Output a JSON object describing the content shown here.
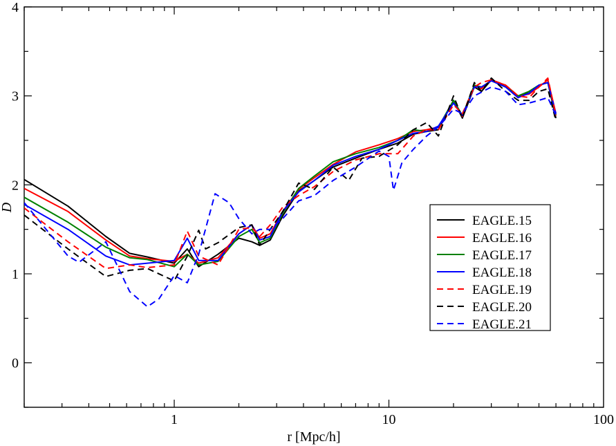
{
  "chart_data": {
    "type": "line",
    "title": "",
    "xlabel": "r [Mpc/h]",
    "ylabel": "D",
    "xscale": "log",
    "xlim": [
      0.2,
      100
    ],
    "ylim": [
      -0.5,
      4
    ],
    "x_ticks": [
      1,
      10,
      100
    ],
    "x_tick_labels": [
      "1",
      "10",
      "100"
    ],
    "y_ticks": [
      0,
      1,
      2,
      3,
      4
    ],
    "y_tick_labels": [
      "0",
      "1",
      "2",
      "3",
      "4"
    ],
    "legend_position": "right",
    "series": [
      {
        "name": "EAGLE.15",
        "color": "#000000",
        "dashed": false,
        "x": [
          0.2,
          0.32,
          0.48,
          0.62,
          0.75,
          1.0,
          1.15,
          1.3,
          1.6,
          2.0,
          2.3,
          2.5,
          2.8,
          3.2,
          3.8,
          4.5,
          5.5,
          7.0,
          9.0,
          11.0,
          13.0,
          15.0,
          17.0,
          20.0,
          22.0,
          25.0,
          27.0,
          30.0,
          35.0,
          40.0,
          45.0,
          50.0,
          55.0,
          60.0
        ],
        "y": [
          2.06,
          1.76,
          1.42,
          1.23,
          1.19,
          1.12,
          1.28,
          1.08,
          1.22,
          1.4,
          1.36,
          1.32,
          1.38,
          1.65,
          1.93,
          2.05,
          2.2,
          2.3,
          2.4,
          2.47,
          2.57,
          2.6,
          2.62,
          2.95,
          2.75,
          3.1,
          3.05,
          3.18,
          3.1,
          2.98,
          3.05,
          3.12,
          3.15,
          2.75
        ]
      },
      {
        "name": "EAGLE.16",
        "color": "#ff0000",
        "dashed": false,
        "x": [
          0.2,
          0.32,
          0.48,
          0.62,
          0.75,
          1.0,
          1.15,
          1.3,
          1.6,
          2.0,
          2.3,
          2.5,
          2.8,
          3.2,
          3.8,
          4.5,
          5.5,
          7.0,
          9.0,
          11.0,
          13.0,
          15.0,
          17.0,
          20.0,
          22.0,
          25.0,
          27.0,
          30.0,
          35.0,
          40.0,
          45.0,
          50.0,
          55.0,
          60.0
        ],
        "y": [
          1.96,
          1.7,
          1.38,
          1.2,
          1.17,
          1.14,
          1.22,
          1.12,
          1.18,
          1.45,
          1.55,
          1.4,
          1.45,
          1.7,
          1.95,
          2.08,
          2.23,
          2.37,
          2.45,
          2.52,
          2.6,
          2.62,
          2.65,
          2.93,
          2.77,
          3.12,
          3.08,
          3.18,
          3.12,
          3.0,
          3.02,
          3.1,
          3.18,
          2.8
        ]
      },
      {
        "name": "EAGLE.17",
        "color": "#008000",
        "dashed": false,
        "x": [
          0.2,
          0.32,
          0.48,
          0.62,
          0.75,
          1.0,
          1.15,
          1.3,
          1.6,
          2.0,
          2.3,
          2.5,
          2.8,
          3.2,
          3.8,
          4.5,
          5.5,
          7.0,
          9.0,
          11.0,
          13.0,
          15.0,
          17.0,
          20.0,
          22.0,
          25.0,
          27.0,
          30.0,
          35.0,
          40.0,
          45.0,
          50.0,
          55.0,
          60.0
        ],
        "y": [
          1.86,
          1.58,
          1.3,
          1.18,
          1.16,
          1.08,
          1.22,
          1.1,
          1.14,
          1.42,
          1.5,
          1.35,
          1.4,
          1.68,
          1.96,
          2.1,
          2.26,
          2.35,
          2.42,
          2.5,
          2.62,
          2.6,
          2.65,
          2.95,
          2.78,
          3.12,
          3.1,
          3.17,
          3.1,
          3.0,
          3.05,
          3.12,
          3.15,
          2.78
        ]
      },
      {
        "name": "EAGLE.18",
        "color": "#0000ff",
        "dashed": false,
        "x": [
          0.2,
          0.32,
          0.48,
          0.62,
          0.75,
          1.0,
          1.15,
          1.3,
          1.6,
          2.0,
          2.3,
          2.5,
          2.8,
          3.2,
          3.8,
          4.5,
          5.5,
          7.0,
          9.0,
          11.0,
          13.0,
          15.0,
          17.0,
          20.0,
          22.0,
          25.0,
          27.0,
          30.0,
          35.0,
          40.0,
          45.0,
          50.0,
          55.0,
          60.0
        ],
        "y": [
          1.78,
          1.5,
          1.2,
          1.1,
          1.12,
          1.15,
          1.4,
          1.15,
          1.15,
          1.45,
          1.55,
          1.38,
          1.42,
          1.7,
          1.92,
          2.05,
          2.22,
          2.32,
          2.4,
          2.5,
          2.58,
          2.6,
          2.66,
          2.92,
          2.78,
          3.1,
          3.1,
          3.17,
          3.1,
          2.98,
          3.03,
          3.12,
          3.15,
          2.8
        ]
      },
      {
        "name": "EAGLE.19",
        "color": "#ff0000",
        "dashed": true,
        "x": [
          0.2,
          0.32,
          0.48,
          0.62,
          0.75,
          1.0,
          1.15,
          1.3,
          1.6,
          2.0,
          2.3,
          2.5,
          2.8,
          3.2,
          3.8,
          4.5,
          5.5,
          7.0,
          9.0,
          11.0,
          13.0,
          15.0,
          17.0,
          20.0,
          22.0,
          25.0,
          27.0,
          30.0,
          35.0,
          40.0,
          45.0,
          50.0,
          55.0,
          60.0
        ],
        "y": [
          1.74,
          1.36,
          1.06,
          1.1,
          1.07,
          1.1,
          1.48,
          1.2,
          1.1,
          1.5,
          1.52,
          1.42,
          1.55,
          1.75,
          1.88,
          1.98,
          2.15,
          2.28,
          2.35,
          2.35,
          2.55,
          2.62,
          2.62,
          2.9,
          2.8,
          3.1,
          3.15,
          3.18,
          3.12,
          3.0,
          2.98,
          3.1,
          3.2,
          2.78
        ]
      },
      {
        "name": "EAGLE.20",
        "color": "#000000",
        "dashed": true,
        "x": [
          0.2,
          0.32,
          0.48,
          0.62,
          0.75,
          1.0,
          1.15,
          1.3,
          1.4,
          1.6,
          2.0,
          2.3,
          2.5,
          2.8,
          3.2,
          3.8,
          4.5,
          5.5,
          6.5,
          7.5,
          9.0,
          11.0,
          13.0,
          15.0,
          17.0,
          20.0,
          22.0,
          25.0,
          27.0,
          30.0,
          35.0,
          40.0,
          45.0,
          50.0,
          55.0,
          60.0
        ],
        "y": [
          1.66,
          1.28,
          0.97,
          1.04,
          1.06,
          0.92,
          1.2,
          1.49,
          1.28,
          1.35,
          1.52,
          1.55,
          1.32,
          1.5,
          1.7,
          2.02,
          1.95,
          2.2,
          2.05,
          2.3,
          2.32,
          2.45,
          2.62,
          2.7,
          2.55,
          3.0,
          2.75,
          3.15,
          3.05,
          3.2,
          3.05,
          2.95,
          2.95,
          3.05,
          3.08,
          2.72
        ]
      },
      {
        "name": "EAGLE.21",
        "color": "#0000ff",
        "dashed": true,
        "x": [
          0.2,
          0.32,
          0.36,
          0.48,
          0.62,
          0.75,
          0.85,
          1.0,
          1.15,
          1.3,
          1.55,
          1.8,
          2.0,
          2.3,
          2.5,
          2.8,
          3.2,
          3.8,
          4.5,
          5.5,
          7.0,
          9.0,
          10.0,
          10.5,
          11.5,
          13.0,
          15.0,
          17.0,
          20.0,
          22.0,
          25.0,
          30.0,
          35.0,
          40.0,
          45.0,
          50.0,
          55.0,
          60.0
        ],
        "y": [
          1.8,
          1.2,
          1.13,
          1.36,
          0.8,
          0.63,
          0.72,
          0.98,
          0.9,
          1.22,
          1.9,
          1.8,
          1.62,
          1.45,
          1.5,
          1.5,
          1.62,
          1.82,
          1.88,
          2.05,
          2.2,
          2.38,
          2.32,
          1.94,
          2.25,
          2.4,
          2.55,
          2.65,
          2.85,
          2.8,
          3.0,
          3.1,
          3.05,
          2.9,
          2.92,
          2.95,
          2.98,
          2.78
        ]
      }
    ]
  }
}
